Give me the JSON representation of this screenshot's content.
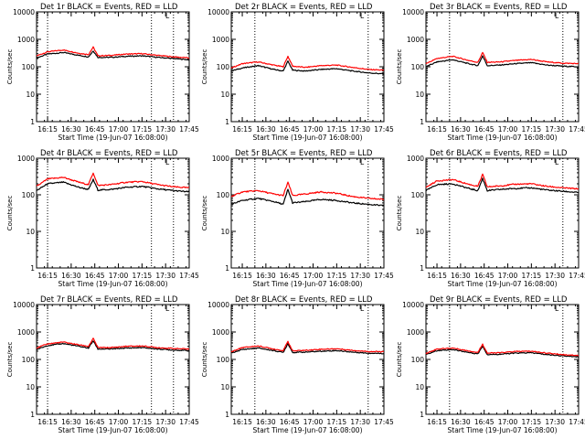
{
  "chart_data": [
    {
      "type": "line",
      "title": "Det 1r BLACK = Events, RED = LLD",
      "xlabel": "Start Time (19-Jun-07 16:08:00)",
      "ylabel": "Counts/sec",
      "corner_mark": "L",
      "yscale": "log",
      "ylim": [
        1,
        10000
      ],
      "yticks": [
        "1",
        "10",
        "100",
        "1000",
        "10000"
      ],
      "xlim": [
        "16:08",
        "17:45"
      ],
      "xticks": [
        "16:15",
        "16:30",
        "16:45",
        "17:00",
        "17:15",
        "17:30",
        "17:45"
      ],
      "vlines": [
        "16:15",
        "17:21",
        "17:35"
      ],
      "x": [
        "16:08",
        "16:15",
        "16:25",
        "16:35",
        "16:41",
        "16:44",
        "16:47",
        "16:55",
        "17:05",
        "17:15",
        "17:25",
        "17:35",
        "17:45"
      ],
      "series": [
        {
          "color": "#000000",
          "values": [
            210,
            290,
            330,
            260,
            230,
            380,
            220,
            220,
            240,
            250,
            220,
            200,
            180
          ]
        },
        {
          "color": "#ff0000",
          "values": [
            250,
            350,
            410,
            310,
            280,
            520,
            250,
            260,
            290,
            300,
            260,
            230,
            210
          ]
        }
      ]
    },
    {
      "type": "line",
      "title": "Det 2r BLACK = Events, RED = LLD",
      "xlabel": "Start Time (19-Jun-07 16:08:00)",
      "ylabel": "Counts/sec",
      "corner_mark": "L",
      "yscale": "log",
      "ylim": [
        1,
        10000
      ],
      "yticks": [
        "1",
        "10",
        "100",
        "1000",
        "10000"
      ],
      "xlim": [
        "16:08",
        "17:45"
      ],
      "xticks": [
        "16:15",
        "16:30",
        "16:45",
        "17:00",
        "17:15",
        "17:30",
        "17:45"
      ],
      "vlines": [
        "16:23",
        "17:35"
      ],
      "x": [
        "16:08",
        "16:15",
        "16:25",
        "16:35",
        "16:41",
        "16:44",
        "16:47",
        "16:55",
        "17:05",
        "17:15",
        "17:25",
        "17:35",
        "17:45"
      ],
      "series": [
        {
          "color": "#000000",
          "values": [
            70,
            90,
            110,
            80,
            70,
            160,
            75,
            70,
            80,
            85,
            70,
            60,
            55
          ]
        },
        {
          "color": "#ff0000",
          "values": [
            90,
            130,
            150,
            115,
            100,
            240,
            105,
            95,
            110,
            115,
            95,
            80,
            75
          ]
        }
      ]
    },
    {
      "type": "line",
      "title": "Det 3r BLACK = Events, RED = LLD",
      "xlabel": "Start Time (19-Jun-07 16:08:00)",
      "ylabel": "Counts/sec",
      "corner_mark": "L",
      "yscale": "log",
      "ylim": [
        1,
        10000
      ],
      "yticks": [
        "1",
        "10",
        "100",
        "1000",
        "10000"
      ],
      "xlim": [
        "16:08",
        "17:45"
      ],
      "xticks": [
        "16:15",
        "16:30",
        "16:45",
        "17:00",
        "17:15",
        "17:30",
        "17:45"
      ],
      "vlines": [
        "16:23",
        "17:35"
      ],
      "x": [
        "16:08",
        "16:15",
        "16:25",
        "16:35",
        "16:41",
        "16:44",
        "16:47",
        "16:55",
        "17:05",
        "17:15",
        "17:25",
        "17:35",
        "17:45"
      ],
      "series": [
        {
          "color": "#000000",
          "values": [
            100,
            150,
            180,
            130,
            110,
            250,
            110,
            115,
            130,
            140,
            115,
            105,
            100
          ]
        },
        {
          "color": "#ff0000",
          "values": [
            130,
            200,
            240,
            170,
            145,
            330,
            145,
            150,
            170,
            185,
            150,
            135,
            130
          ]
        }
      ]
    },
    {
      "type": "line",
      "title": "Det 4r BLACK = Events, RED = LLD",
      "xlabel": "Start Time (19-Jun-07 16:08:00)",
      "ylabel": "Counts/sec",
      "corner_mark": "L",
      "yscale": "log",
      "ylim": [
        1,
        1000
      ],
      "yticks": [
        "1",
        "10",
        "100",
        "1000"
      ],
      "xlim": [
        "16:08",
        "17:45"
      ],
      "xticks": [
        "16:15",
        "16:30",
        "16:45",
        "17:00",
        "17:15",
        "17:30",
        "17:45"
      ],
      "vlines": [
        "16:15",
        "17:21",
        "17:35"
      ],
      "x": [
        "16:08",
        "16:15",
        "16:25",
        "16:35",
        "16:41",
        "16:44",
        "16:47",
        "16:55",
        "17:05",
        "17:15",
        "17:25",
        "17:35",
        "17:45"
      ],
      "series": [
        {
          "color": "#000000",
          "values": [
            130,
            200,
            220,
            160,
            140,
            260,
            135,
            140,
            160,
            170,
            145,
            130,
            120
          ]
        },
        {
          "color": "#ff0000",
          "values": [
            170,
            270,
            300,
            220,
            190,
            400,
            180,
            190,
            220,
            230,
            190,
            165,
            155
          ]
        }
      ]
    },
    {
      "type": "line",
      "title": "Det 5r BLACK = Events, RED = LLD",
      "xlabel": "Start Time (19-Jun-07 16:08:00)",
      "ylabel": "Counts/sec",
      "corner_mark": "L",
      "yscale": "log",
      "ylim": [
        1,
        1000
      ],
      "yticks": [
        "1",
        "10",
        "100",
        "1000"
      ],
      "xlim": [
        "16:08",
        "17:45"
      ],
      "xticks": [
        "16:15",
        "16:30",
        "16:45",
        "17:00",
        "17:15",
        "17:30",
        "17:45"
      ],
      "vlines": [
        "16:23",
        "17:35"
      ],
      "x": [
        "16:08",
        "16:15",
        "16:25",
        "16:35",
        "16:41",
        "16:44",
        "16:47",
        "16:55",
        "17:05",
        "17:15",
        "17:25",
        "17:35",
        "17:45"
      ],
      "series": [
        {
          "color": "#000000",
          "values": [
            55,
            70,
            80,
            65,
            55,
            140,
            60,
            65,
            75,
            70,
            60,
            55,
            50
          ]
        },
        {
          "color": "#ff0000",
          "values": [
            90,
            120,
            130,
            105,
            95,
            220,
            95,
            105,
            120,
            110,
            90,
            80,
            75
          ]
        }
      ]
    },
    {
      "type": "line",
      "title": "Det 6r BLACK = Events, RED = LLD",
      "xlabel": "Start Time (19-Jun-07 16:08:00)",
      "ylabel": "Counts/sec",
      "corner_mark": "L",
      "yscale": "log",
      "ylim": [
        1,
        1000
      ],
      "yticks": [
        "1",
        "10",
        "100",
        "1000"
      ],
      "xlim": [
        "16:08",
        "17:45"
      ],
      "xticks": [
        "16:15",
        "16:30",
        "16:45",
        "17:00",
        "17:15",
        "17:30",
        "17:45"
      ],
      "vlines": [
        "16:23",
        "17:35"
      ],
      "x": [
        "16:08",
        "16:15",
        "16:25",
        "16:35",
        "16:41",
        "16:44",
        "16:47",
        "16:55",
        "17:05",
        "17:15",
        "17:25",
        "17:35",
        "17:45"
      ],
      "series": [
        {
          "color": "#000000",
          "values": [
            130,
            190,
            200,
            150,
            130,
            280,
            130,
            140,
            150,
            155,
            135,
            125,
            115
          ]
        },
        {
          "color": "#ff0000",
          "values": [
            160,
            240,
            260,
            195,
            170,
            360,
            165,
            175,
            195,
            200,
            170,
            155,
            145
          ]
        }
      ]
    },
    {
      "type": "line",
      "title": "Det 7r BLACK = Events, RED = LLD",
      "xlabel": "Start Time (19-Jun-07 16:08:00)",
      "ylabel": "Counts/sec",
      "corner_mark": "L",
      "yscale": "log",
      "ylim": [
        1,
        10000
      ],
      "yticks": [
        "1",
        "10",
        "100",
        "1000",
        "10000"
      ],
      "xlim": [
        "16:08",
        "17:45"
      ],
      "xticks": [
        "16:15",
        "16:30",
        "16:45",
        "17:00",
        "17:15",
        "17:30",
        "17:45"
      ],
      "vlines": [
        "16:15",
        "17:21",
        "17:35"
      ],
      "x": [
        "16:08",
        "16:15",
        "16:25",
        "16:35",
        "16:41",
        "16:44",
        "16:47",
        "16:55",
        "17:05",
        "17:15",
        "17:25",
        "17:35",
        "17:45"
      ],
      "series": [
        {
          "color": "#000000",
          "values": [
            230,
            320,
            380,
            300,
            260,
            480,
            240,
            240,
            260,
            270,
            240,
            220,
            210
          ]
        },
        {
          "color": "#ff0000",
          "values": [
            260,
            370,
            430,
            340,
            300,
            580,
            270,
            270,
            300,
            310,
            270,
            250,
            240
          ]
        }
      ]
    },
    {
      "type": "line",
      "title": "Det 8r BLACK = Events, RED = LLD",
      "xlabel": "Start Time (19-Jun-07 16:08:00)",
      "ylabel": "Counts/sec",
      "corner_mark": "L",
      "yscale": "log",
      "ylim": [
        1,
        10000
      ],
      "yticks": [
        "1",
        "10",
        "100",
        "1000",
        "10000"
      ],
      "xlim": [
        "16:08",
        "17:45"
      ],
      "xticks": [
        "16:15",
        "16:30",
        "16:45",
        "17:00",
        "17:15",
        "17:30",
        "17:45"
      ],
      "vlines": [
        "16:23",
        "17:35"
      ],
      "x": [
        "16:08",
        "16:15",
        "16:25",
        "16:35",
        "16:41",
        "16:44",
        "16:47",
        "16:55",
        "17:05",
        "17:15",
        "17:25",
        "17:35",
        "17:45"
      ],
      "series": [
        {
          "color": "#000000",
          "values": [
            170,
            230,
            260,
            210,
            180,
            380,
            180,
            185,
            200,
            210,
            185,
            170,
            165
          ]
        },
        {
          "color": "#ff0000",
          "values": [
            190,
            270,
            310,
            240,
            210,
            450,
            205,
            215,
            235,
            245,
            215,
            195,
            190
          ]
        }
      ]
    },
    {
      "type": "line",
      "title": "Det 9r BLACK = Events, RED = LLD",
      "xlabel": "Start Time (19-Jun-07 16:08:00)",
      "ylabel": "Counts/sec",
      "corner_mark": "L",
      "yscale": "log",
      "ylim": [
        1,
        10000
      ],
      "yticks": [
        "1",
        "10",
        "100",
        "1000",
        "10000"
      ],
      "xlim": [
        "16:08",
        "17:45"
      ],
      "xticks": [
        "16:15",
        "16:30",
        "16:45",
        "17:00",
        "17:15",
        "17:30",
        "17:45"
      ],
      "vlines": [
        "16:23",
        "17:35"
      ],
      "x": [
        "16:08",
        "16:15",
        "16:25",
        "16:35",
        "16:41",
        "16:44",
        "16:47",
        "16:55",
        "17:05",
        "17:15",
        "17:25",
        "17:35",
        "17:45"
      ],
      "series": [
        {
          "color": "#000000",
          "values": [
            150,
            210,
            230,
            180,
            160,
            310,
            150,
            155,
            170,
            175,
            150,
            135,
            125
          ]
        },
        {
          "color": "#ff0000",
          "values": [
            165,
            240,
            260,
            205,
            180,
            360,
            170,
            175,
            195,
            200,
            170,
            150,
            140
          ]
        }
      ]
    }
  ]
}
